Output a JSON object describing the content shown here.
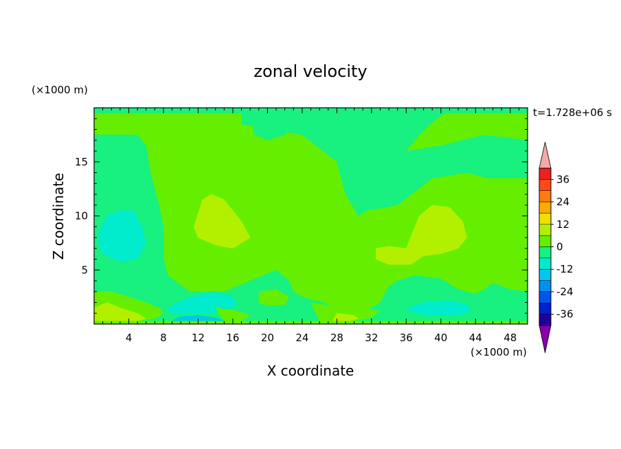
{
  "chart_data": {
    "type": "heatmap",
    "title": "zonal velocity",
    "time_label": "t=1.728e+06 s",
    "xlabel": "X coordinate",
    "ylabel": "Z coordinate",
    "x_unit": "(×1000 m)",
    "y_unit": "(×1000 m)",
    "xlim": [
      0,
      50
    ],
    "ylim": [
      0,
      20
    ],
    "x_ticks": [
      4,
      8,
      12,
      16,
      20,
      24,
      28,
      32,
      36,
      40,
      44,
      48
    ],
    "y_ticks": [
      5,
      10,
      15
    ],
    "colorbar": {
      "ticks": [
        36,
        24,
        12,
        0,
        -12,
        -24,
        -36
      ],
      "levels": [
        {
          "min": 36,
          "max": 42,
          "color": "#ee2020"
        },
        {
          "min": 30,
          "max": 36,
          "color": "#ff4a18"
        },
        {
          "min": 24,
          "max": 30,
          "color": "#ff7a10"
        },
        {
          "min": 18,
          "max": 24,
          "color": "#ffaa00"
        },
        {
          "min": 12,
          "max": 18,
          "color": "#f0e000"
        },
        {
          "min": 6,
          "max": 12,
          "color": "#b2f000"
        },
        {
          "min": 0,
          "max": 6,
          "color": "#66ee00"
        },
        {
          "min": -6,
          "max": 0,
          "color": "#18f080"
        },
        {
          "min": -12,
          "max": -6,
          "color": "#00eccc"
        },
        {
          "min": -18,
          "max": -12,
          "color": "#00c8f0"
        },
        {
          "min": -24,
          "max": -18,
          "color": "#0090f0"
        },
        {
          "min": -30,
          "max": -24,
          "color": "#0055ee"
        },
        {
          "min": -36,
          "max": -30,
          "color": "#0020cc"
        },
        {
          "min": -42,
          "max": -36,
          "color": "#200098"
        }
      ],
      "over_color": "#f5a8a8",
      "under_color": "#8800aa"
    },
    "regions": [
      {
        "level": "-6..0",
        "points": [
          [
            0,
            19.5
          ],
          [
            17,
            19.5
          ],
          [
            17,
            18.5
          ],
          [
            24,
            17.5
          ],
          [
            28,
            15
          ],
          [
            29,
            12
          ],
          [
            30.5,
            10
          ],
          [
            31.5,
            10.5
          ],
          [
            35,
            11
          ],
          [
            39,
            13.5
          ],
          [
            43,
            14
          ],
          [
            45.5,
            13.5
          ],
          [
            50,
            13.5
          ],
          [
            50,
            17
          ],
          [
            45,
            17.5
          ],
          [
            40,
            16.5
          ],
          [
            36,
            16
          ],
          [
            37.5,
            17.5
          ],
          [
            39.5,
            19
          ],
          [
            40.5,
            19.5
          ],
          [
            50,
            19.5
          ],
          [
            50,
            20
          ],
          [
            0,
            20
          ]
        ]
      },
      {
        "level": "-6..0",
        "points": [
          [
            0,
            17.5
          ],
          [
            5,
            17.5
          ],
          [
            6,
            16.5
          ],
          [
            6.5,
            14
          ],
          [
            7.5,
            11
          ],
          [
            8,
            9
          ],
          [
            8,
            6
          ],
          [
            8.5,
            4.5
          ],
          [
            11,
            3
          ],
          [
            15,
            3
          ],
          [
            18,
            4
          ],
          [
            21,
            5
          ],
          [
            22.5,
            4
          ],
          [
            23,
            3
          ],
          [
            24,
            2.5
          ],
          [
            25,
            2.3
          ],
          [
            26.5,
            2
          ],
          [
            28,
            1.3
          ],
          [
            30,
            1.2
          ],
          [
            31.5,
            1.3
          ],
          [
            33,
            2
          ],
          [
            34,
            3.5
          ],
          [
            35,
            4
          ],
          [
            37,
            4.5
          ],
          [
            40,
            4.2
          ],
          [
            42,
            3.2
          ],
          [
            44,
            2.8
          ],
          [
            45,
            3.2
          ],
          [
            46,
            3.8
          ],
          [
            48,
            3.2
          ],
          [
            50,
            3
          ],
          [
            50,
            0.3
          ],
          [
            0,
            0.3
          ]
        ]
      },
      {
        "level": "-6..0",
        "points": [
          [
            18,
            19.5
          ],
          [
            24,
            19.5
          ],
          [
            23,
            18.5
          ],
          [
            22,
            17.5
          ],
          [
            20,
            17
          ],
          [
            18.5,
            17.5
          ]
        ]
      },
      {
        "level": "-6..0",
        "points": [
          [
            34.5,
            19.5
          ],
          [
            40,
            19.5
          ],
          [
            39,
            18.8
          ],
          [
            37,
            18.2
          ],
          [
            35,
            18.5
          ]
        ]
      },
      {
        "level": "-12..-6",
        "points": [
          [
            0.5,
            8.5
          ],
          [
            1.5,
            10
          ],
          [
            3,
            10.5
          ],
          [
            4.5,
            10.5
          ],
          [
            5.5,
            9
          ],
          [
            6,
            7.5
          ],
          [
            5,
            6
          ],
          [
            3,
            5.8
          ],
          [
            1,
            6.5
          ],
          [
            0.5,
            7.5
          ]
        ]
      },
      {
        "level": "-12..-6",
        "points": [
          [
            8.5,
            1.5
          ],
          [
            10,
            2.2
          ],
          [
            12,
            2.7
          ],
          [
            14,
            3
          ],
          [
            16,
            2.5
          ],
          [
            16.5,
            1.8
          ],
          [
            15,
            1.2
          ],
          [
            13,
            1
          ],
          [
            11,
            1
          ],
          [
            9,
            0.9
          ]
        ]
      },
      {
        "level": "-12..-6",
        "points": [
          [
            36,
            1.5
          ],
          [
            38,
            2
          ],
          [
            41,
            2.2
          ],
          [
            43,
            1.8
          ],
          [
            43.5,
            1.2
          ],
          [
            42,
            0.8
          ],
          [
            39,
            0.8
          ],
          [
            37,
            1
          ]
        ]
      },
      {
        "level": "-18..-12",
        "points": [
          [
            9,
            0.3
          ],
          [
            10,
            0.7
          ],
          [
            12,
            0.8
          ],
          [
            14,
            0.6
          ],
          [
            15,
            0.3
          ]
        ]
      },
      {
        "level": "0..6",
        "points": [
          [
            0,
            3
          ],
          [
            2,
            3
          ],
          [
            4,
            2.5
          ],
          [
            6,
            2
          ],
          [
            7.5,
            1.5
          ],
          [
            8,
            1
          ],
          [
            7,
            0.5
          ],
          [
            5,
            0.3
          ],
          [
            0,
            0.3
          ]
        ]
      },
      {
        "level": "0..6",
        "points": [
          [
            19,
            3
          ],
          [
            21,
            3.2
          ],
          [
            22.5,
            2.5
          ],
          [
            22,
            1.8
          ],
          [
            20,
            1.7
          ],
          [
            19,
            2
          ]
        ]
      },
      {
        "level": "0..6",
        "points": [
          [
            25,
            2
          ],
          [
            27,
            1.7
          ],
          [
            29,
            1.6
          ],
          [
            31,
            1.5
          ],
          [
            33,
            1.2
          ],
          [
            32,
            0.6
          ],
          [
            30,
            0.3
          ],
          [
            26,
            0.3
          ]
        ]
      },
      {
        "level": "0..6",
        "points": [
          [
            14,
            1.5
          ],
          [
            16,
            1.3
          ],
          [
            18,
            0.8
          ],
          [
            17,
            0.3
          ],
          [
            15,
            0.3
          ]
        ]
      },
      {
        "level": "6..12",
        "points": [
          [
            11.5,
            9
          ],
          [
            12.5,
            11.5
          ],
          [
            13.5,
            12
          ],
          [
            15,
            11.5
          ],
          [
            17,
            9.5
          ],
          [
            18,
            8
          ],
          [
            16,
            7
          ],
          [
            14,
            7.3
          ],
          [
            12,
            8
          ]
        ]
      },
      {
        "level": "6..12",
        "points": [
          [
            36,
            7
          ],
          [
            36.5,
            8
          ],
          [
            37.5,
            10
          ],
          [
            39,
            11
          ],
          [
            41,
            10.8
          ],
          [
            42.5,
            9.5
          ],
          [
            43,
            8
          ],
          [
            42,
            7
          ],
          [
            40,
            6.5
          ],
          [
            38,
            6.3
          ],
          [
            36.5,
            5.5
          ],
          [
            34,
            5.5
          ],
          [
            32.5,
            6
          ],
          [
            32.5,
            7
          ],
          [
            34,
            7.2
          ]
        ]
      },
      {
        "level": "6..12",
        "points": [
          [
            0,
            1.5
          ],
          [
            1.5,
            2
          ],
          [
            3,
            1.5
          ],
          [
            5,
            1
          ],
          [
            6,
            0.5
          ],
          [
            5,
            0.3
          ],
          [
            0,
            0.3
          ]
        ]
      },
      {
        "level": "6..12",
        "points": [
          [
            28,
            1
          ],
          [
            30,
            0.8
          ],
          [
            30.5,
            0.5
          ],
          [
            29.5,
            0.3
          ],
          [
            27.5,
            0.3
          ]
        ]
      }
    ]
  }
}
